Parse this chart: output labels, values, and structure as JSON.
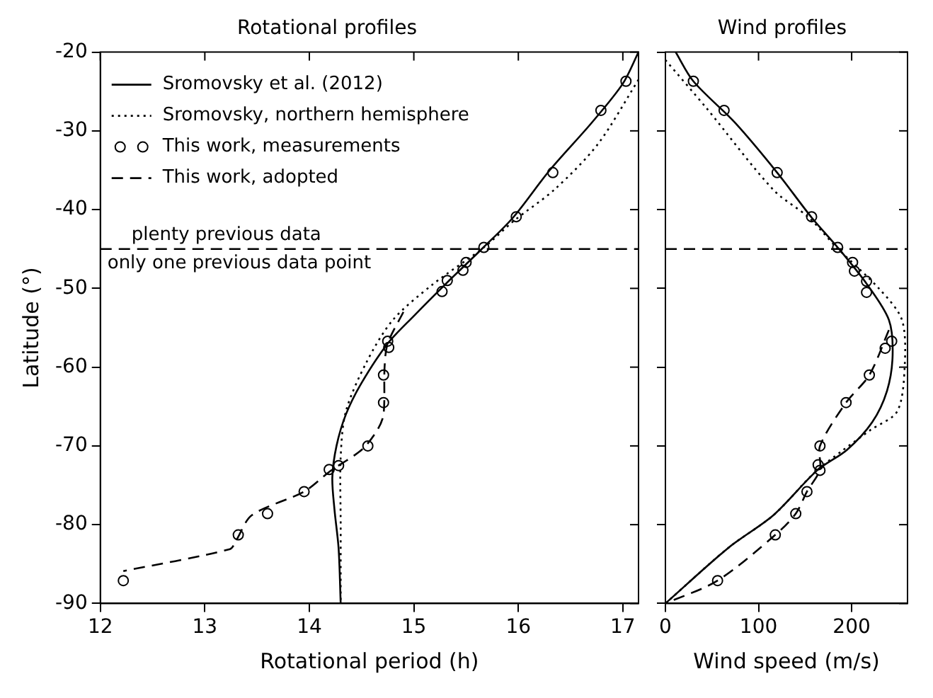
{
  "chart_data": [
    {
      "type": "line",
      "title": "Rotational profiles",
      "xlabel": "Rotational period (h)",
      "ylabel": "Latitude (°)",
      "xlim": [
        12,
        17.15
      ],
      "xticks": [
        12,
        13,
        14,
        15,
        16,
        17
      ],
      "ylim": [
        -90,
        -20
      ],
      "yticks": [
        -90,
        -80,
        -70,
        -60,
        -50,
        -40,
        -30,
        -20
      ],
      "legend": "top left",
      "ref_lines": [
        {
          "axis": "y",
          "value": -45,
          "label": "plenty previous data",
          "color": "#000000",
          "line_style": "dashed"
        }
      ],
      "annotations": [
        "only one previous data point"
      ],
      "series": [
        {
          "type": "line",
          "name": "Sromovsky et al. (2012)",
          "color": "#000000",
          "line_style": "solid",
          "marker": "none",
          "x": [
            17.15,
            17.0,
            16.7,
            16.3,
            15.95,
            15.65,
            15.3,
            15.0,
            14.75,
            14.5,
            14.35,
            14.26,
            14.22,
            14.24,
            14.28,
            14.3
          ],
          "values": [
            -20,
            -24,
            -29,
            -35,
            -41,
            -45,
            -49.5,
            -53.5,
            -57,
            -62,
            -66,
            -70,
            -74,
            -78,
            -83,
            -90
          ]
        },
        {
          "type": "line",
          "name": "Sromovsky, northern hemisphere",
          "color": "#000000",
          "line_style": "dotted",
          "marker": "none",
          "x": [
            17.15,
            16.76,
            16.35,
            15.95,
            15.68,
            15.18,
            14.8,
            14.55,
            14.35,
            14.3,
            14.3,
            14.3
          ],
          "values": [
            -23.5,
            -31.7,
            -37.4,
            -41.5,
            -44.7,
            -49.5,
            -54,
            -59.3,
            -65.6,
            -71.4,
            -80,
            -90
          ]
        },
        {
          "type": "scatter",
          "name": "This work, measurements",
          "color": "#000000",
          "marker": "circle",
          "x": [
            17.03,
            16.79,
            16.33,
            15.98,
            15.67,
            15.5,
            15.47,
            15.32,
            15.27,
            14.75,
            14.76,
            14.71,
            14.71,
            14.56,
            14.28,
            14.19,
            13.95,
            13.6,
            13.32,
            12.22
          ],
          "values": [
            -23.7,
            -27.4,
            -35.3,
            -40.9,
            -44.8,
            -46.7,
            -47.7,
            -49,
            -50.4,
            -56.7,
            -57.5,
            -61,
            -64.5,
            -70,
            -72.5,
            -73,
            -75.8,
            -78.6,
            -81.3,
            -87.1
          ]
        },
        {
          "type": "line",
          "name": "This work, adopted",
          "color": "#000000",
          "line_style": "dashed",
          "marker": "none",
          "x": [
            14.9,
            14.75,
            14.72,
            14.71,
            14.65,
            14.5,
            14.2,
            13.95,
            13.45,
            13.3,
            13.24,
            12.22
          ],
          "values": [
            -53,
            -57,
            -60,
            -66,
            -68,
            -70.5,
            -73.2,
            -75.8,
            -78.8,
            -82,
            -83.1,
            -85.9
          ]
        }
      ]
    },
    {
      "type": "line",
      "title": "Wind profiles",
      "xlabel": "Wind speed (m/s)",
      "xlim": [
        0,
        260
      ],
      "xticks": [
        0,
        100,
        200
      ],
      "ylim": [
        -90,
        -20
      ],
      "yticks": [
        -90,
        -80,
        -70,
        -60,
        -50,
        -40,
        -30,
        -20
      ],
      "tick_labels": "x",
      "ref_lines": [
        {
          "axis": "y",
          "value": -45,
          "color": "#000000",
          "line_style": "dashed"
        }
      ],
      "series": [
        {
          "type": "line",
          "color": "#000000",
          "line_style": "solid",
          "marker": "none",
          "x": [
            11,
            30,
            75,
            120,
            157,
            185,
            216,
            240,
            244,
            238,
            222,
            195,
            163,
            116,
            68,
            0
          ],
          "values": [
            -20,
            -23.7,
            -29,
            -35.3,
            -41,
            -44.8,
            -49.4,
            -54,
            -58.5,
            -63,
            -67,
            -70.5,
            -73.1,
            -78.8,
            -82.9,
            -90
          ]
        },
        {
          "type": "line",
          "color": "#000000",
          "line_style": "dotted",
          "marker": "none",
          "x": [
            0,
            44,
            116,
            154,
            183,
            230,
            254,
            257,
            249,
            220,
            190,
            160,
            116,
            68,
            0
          ],
          "values": [
            -21,
            -27.1,
            -37.5,
            -41,
            -44.7,
            -50.1,
            -54,
            -59.8,
            -65.6,
            -68,
            -70.6,
            -73.4,
            -78.8,
            -82.9,
            -90
          ]
        },
        {
          "type": "scatter",
          "color": "#000000",
          "marker": "circle",
          "x": [
            30,
            63,
            120,
            157,
            185,
            201,
            203,
            216,
            216,
            243,
            236,
            219,
            194,
            166,
            164,
            166,
            152,
            140,
            118,
            56
          ],
          "values": [
            -23.7,
            -27.4,
            -35.3,
            -40.9,
            -44.8,
            -46.7,
            -47.8,
            -49.1,
            -50.5,
            -56.7,
            -57.6,
            -61,
            -64.5,
            -70,
            -72.4,
            -73.1,
            -75.8,
            -78.6,
            -81.3,
            -87.1
          ]
        },
        {
          "type": "line",
          "color": "#000000",
          "line_style": "dashed",
          "marker": "none",
          "x": [
            240,
            219,
            194,
            166,
            166,
            152,
            140,
            118,
            56,
            0
          ],
          "values": [
            -55.3,
            -61,
            -64.5,
            -70,
            -73,
            -75.8,
            -78.6,
            -81.3,
            -87.1,
            -90
          ]
        }
      ]
    }
  ]
}
